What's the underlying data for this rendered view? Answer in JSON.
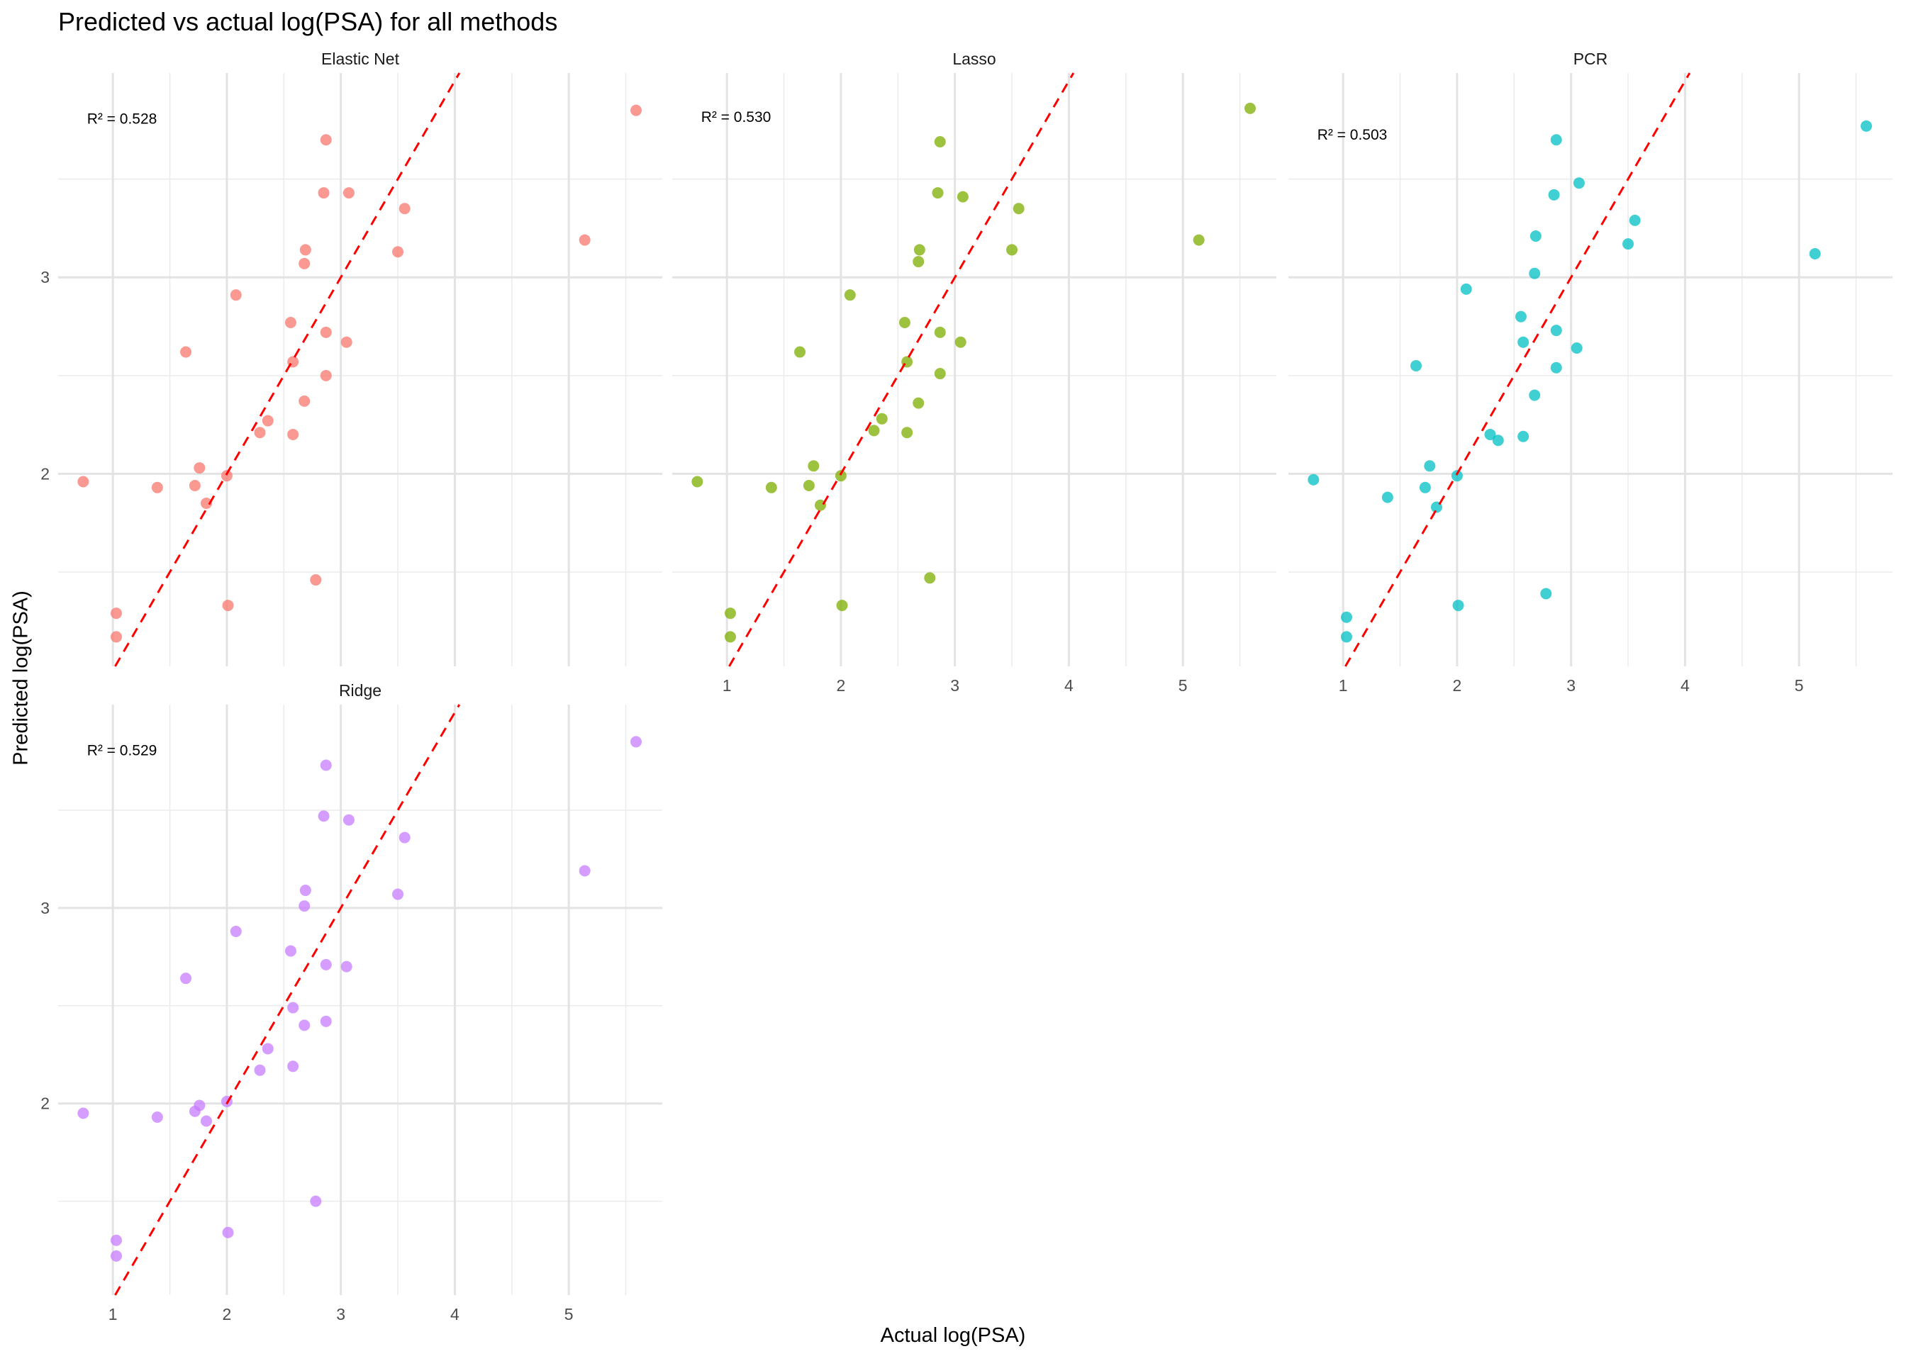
{
  "chart_data": {
    "type": "scatter",
    "title": "Predicted vs actual log(PSA) for all methods",
    "xlabel": "Actual log(PSA)",
    "ylabel": "Predicted log(PSA)",
    "xlim": [
      0.52,
      5.82
    ],
    "ylim": [
      1.02,
      4.04
    ],
    "xticks": [
      1,
      2,
      3,
      4,
      5
    ],
    "yticks": [
      2,
      3
    ],
    "grid": true,
    "reference_line": {
      "type": "y = x",
      "color": "#FF0000",
      "style": "dashed"
    },
    "x": [
      5.59,
      2.87,
      2.85,
      3.07,
      3.56,
      5.14,
      2.69,
      3.5,
      2.68,
      2.08,
      2.56,
      2.87,
      3.05,
      1.64,
      2.58,
      2.87,
      2.68,
      2.36,
      2.29,
      2.58,
      1.76,
      0.74,
      1.72,
      1.39,
      2.0,
      1.82,
      2.78,
      1.03,
      2.01,
      1.03
    ],
    "panels": [
      {
        "name": "Elastic Net",
        "r2_label": "R² = 0.528",
        "color": "#F8766D",
        "y": [
          3.85,
          3.7,
          3.43,
          3.43,
          3.35,
          3.19,
          3.14,
          3.13,
          3.07,
          2.91,
          2.77,
          2.72,
          2.67,
          2.62,
          2.57,
          2.5,
          2.37,
          2.27,
          2.21,
          2.2,
          2.03,
          1.96,
          1.94,
          1.93,
          1.99,
          1.85,
          1.46,
          1.29,
          1.33,
          1.17
        ]
      },
      {
        "name": "Lasso",
        "r2_label": "R² = 0.530",
        "color": "#7CAE00",
        "y": [
          3.86,
          3.69,
          3.43,
          3.41,
          3.35,
          3.19,
          3.14,
          3.14,
          3.08,
          2.91,
          2.77,
          2.72,
          2.67,
          2.62,
          2.57,
          2.51,
          2.36,
          2.28,
          2.22,
          2.21,
          2.04,
          1.96,
          1.94,
          1.93,
          1.99,
          1.84,
          1.47,
          1.29,
          1.33,
          1.17
        ]
      },
      {
        "name": "PCR",
        "r2_label": "R² = 0.503",
        "color": "#00BFC4",
        "y": [
          3.77,
          3.7,
          3.42,
          3.48,
          3.29,
          3.12,
          3.21,
          3.17,
          3.02,
          2.94,
          2.8,
          2.73,
          2.64,
          2.55,
          2.67,
          2.54,
          2.4,
          2.17,
          2.2,
          2.19,
          2.04,
          1.97,
          1.93,
          1.88,
          1.99,
          1.83,
          1.39,
          1.27,
          1.33,
          1.17
        ]
      },
      {
        "name": "Ridge",
        "r2_label": "R² = 0.529",
        "color": "#C77CFF",
        "y": [
          3.85,
          3.73,
          3.47,
          3.45,
          3.36,
          3.19,
          3.09,
          3.07,
          3.01,
          2.88,
          2.78,
          2.71,
          2.7,
          2.64,
          2.49,
          2.42,
          2.4,
          2.28,
          2.17,
          2.19,
          1.99,
          1.95,
          1.96,
          1.93,
          2.01,
          1.91,
          1.5,
          1.3,
          1.34,
          1.22
        ]
      }
    ]
  }
}
